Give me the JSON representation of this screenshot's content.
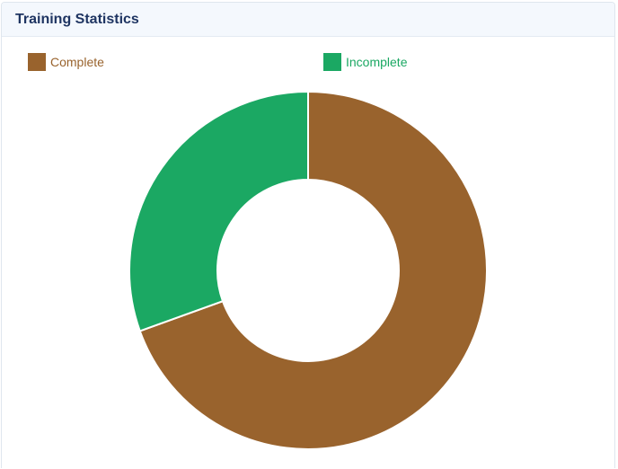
{
  "panel": {
    "title": "Training Statistics"
  },
  "chart_data": {
    "type": "pie",
    "variant": "donut",
    "title": "Training Statistics",
    "categories": [
      "Complete",
      "Incomplete"
    ],
    "values": [
      69.5,
      30.5
    ],
    "colors": [
      "#99632d",
      "#1ba863"
    ],
    "legend_position": "top",
    "start_angle_deg": 0,
    "direction": "clockwise"
  }
}
